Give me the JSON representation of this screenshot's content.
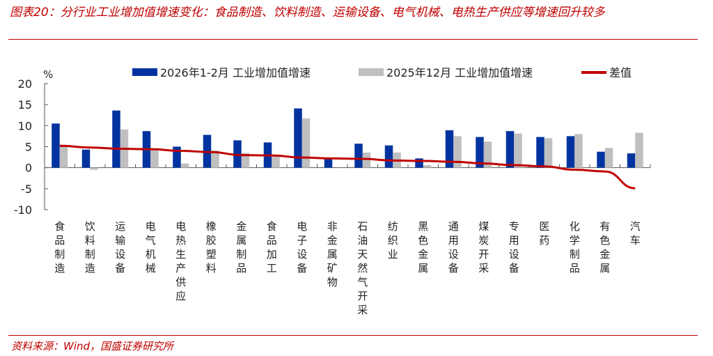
{
  "title": "图表20：分行业工业增加值增速变化：食品制造、饮料制造、运输设备、电气机械、电热生产供应等增速回升较多",
  "source": "资料来源：Wind，国盛证券研究所",
  "colors": {
    "blue": "#0033a0",
    "gray": "#bfbfbf",
    "red": "#c00000"
  },
  "chart_data": {
    "type": "bar",
    "ylabel": "%",
    "ylim": [
      -10,
      20
    ],
    "yticks": [
      "20",
      "15",
      "10",
      "5",
      "0",
      "-5",
      "-10"
    ],
    "categories": [
      "食品制造",
      "饮料制造",
      "运输设备",
      "电气机械",
      "电热生产供应",
      "橡胶塑料",
      "金属制品",
      "食品加工",
      "电子设备",
      "非金属矿物",
      "石油天然气开采",
      "纺织业",
      "黑色金属",
      "通用设备",
      "煤炭开采",
      "专用设备",
      "医药",
      "化学制品",
      "有色金属",
      "汽车"
    ],
    "series": [
      {
        "name": "2026年1-2月 工业增加值增速",
        "type": "bar",
        "values": [
          10.5,
          4.3,
          13.6,
          8.7,
          5.0,
          7.8,
          6.5,
          6.0,
          14.1,
          2.2,
          5.7,
          5.3,
          2.2,
          8.9,
          7.3,
          8.7,
          7.3,
          7.5,
          3.8,
          3.4
        ]
      },
      {
        "name": "2025年12月 工业增加值增速",
        "type": "bar",
        "values": [
          5.3,
          -0.5,
          9.1,
          4.3,
          1.0,
          4.1,
          3.5,
          3.0,
          11.7,
          0.0,
          3.6,
          3.6,
          0.6,
          7.5,
          6.2,
          8.1,
          7.0,
          8.0,
          4.7,
          8.3
        ]
      },
      {
        "name": "差值",
        "type": "line",
        "values": [
          5.2,
          4.8,
          4.5,
          4.4,
          4.0,
          3.7,
          3.0,
          2.9,
          2.4,
          2.2,
          2.1,
          1.7,
          1.6,
          1.4,
          1.0,
          0.6,
          0.3,
          -0.5,
          -0.9,
          -4.9
        ]
      }
    ],
    "legend": "top"
  }
}
